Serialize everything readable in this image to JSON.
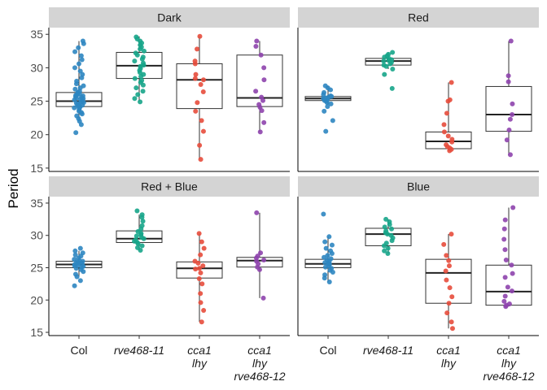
{
  "chart_data": {
    "type": "box+jitter",
    "ylabel": "Period",
    "xlabel": "",
    "ylim": [
      14.5,
      36
    ],
    "yticks": [
      15,
      20,
      25,
      30,
      35
    ],
    "categories": [
      {
        "lines": [
          "Col"
        ],
        "italic": false
      },
      {
        "lines": [
          "rve468-11"
        ],
        "italic": true
      },
      {
        "lines": [
          "cca1",
          "lhy"
        ],
        "italic": true
      },
      {
        "lines": [
          "cca1",
          "lhy",
          "rve468-12"
        ],
        "italic": true
      }
    ],
    "colors": [
      "#2E86C1",
      "#17A589",
      "#E74C3C",
      "#8E44AD"
    ],
    "panels": [
      {
        "title": "Dark",
        "boxes": [
          {
            "q1": 24.2,
            "median": 25.0,
            "q3": 26.3,
            "low": 22.0,
            "high": 34.0
          },
          {
            "q1": 28.4,
            "median": 30.3,
            "q3": 32.3,
            "low": 25.0,
            "high": 34.7
          },
          {
            "q1": 23.9,
            "median": 28.2,
            "q3": 30.6,
            "low": 16.3,
            "high": 34.7
          },
          {
            "q1": 24.2,
            "median": 25.5,
            "q3": 31.9,
            "low": 20.4,
            "high": 34.0
          }
        ],
        "points": [
          [
            20.3,
            21.5,
            22.0,
            22.4,
            22.8,
            23.1,
            23.3,
            23.5,
            23.7,
            23.9,
            24.0,
            24.1,
            24.2,
            24.3,
            24.4,
            24.5,
            24.6,
            24.7,
            24.8,
            24.9,
            25.0,
            25.1,
            25.2,
            25.3,
            25.4,
            25.5,
            25.6,
            25.7,
            25.8,
            25.9,
            26.0,
            26.1,
            26.2,
            26.3,
            26.5,
            26.8,
            27.0,
            27.3,
            27.6,
            28.0,
            28.5,
            29.0,
            29.5,
            30.0,
            30.6,
            31.2,
            31.8,
            32.4,
            33.0,
            33.6,
            34.0
          ],
          [
            24.9,
            25.4,
            26.0,
            26.5,
            27.0,
            27.4,
            27.8,
            28.1,
            28.4,
            28.7,
            29.0,
            29.3,
            29.6,
            29.9,
            30.2,
            30.4,
            30.7,
            31.0,
            31.3,
            31.6,
            31.9,
            32.2,
            32.5,
            32.8,
            33.1,
            33.4,
            33.7,
            34.0,
            34.3,
            34.6
          ],
          [
            16.3,
            18.4,
            20.5,
            22.1,
            23.5,
            24.8,
            26.4,
            27.5,
            28.2,
            28.4,
            29.0,
            30.6,
            31.0,
            32.8,
            34.7
          ],
          [
            20.4,
            21.8,
            23.6,
            24.1,
            24.5,
            25.1,
            25.6,
            26.5,
            28.2,
            30.0,
            31.9,
            33.2,
            34.0
          ]
        ]
      },
      {
        "title": "Red",
        "boxes": [
          {
            "q1": 25.1,
            "median": 25.4,
            "q3": 25.7,
            "low": 24.5,
            "high": 27.3
          },
          {
            "q1": 30.4,
            "median": 31.0,
            "q3": 31.4,
            "low": 29.8,
            "high": 32.3
          },
          {
            "q1": 17.9,
            "median": 19.0,
            "q3": 20.4,
            "low": 17.6,
            "high": 27.8
          },
          {
            "q1": 20.5,
            "median": 23.0,
            "q3": 27.2,
            "low": 17.0,
            "high": 34.0
          }
        ],
        "points": [
          [
            20.5,
            22.1,
            23.5,
            24.2,
            24.6,
            24.8,
            25.0,
            25.1,
            25.2,
            25.3,
            25.4,
            25.5,
            25.6,
            25.7,
            25.8,
            26.0,
            26.3,
            26.7,
            27.0,
            27.3
          ],
          [
            26.9,
            29.0,
            29.8,
            30.2,
            30.4,
            30.6,
            30.8,
            31.0,
            31.1,
            31.2,
            31.4,
            31.6,
            31.8,
            32.0,
            32.3
          ],
          [
            17.6,
            17.8,
            18.0,
            18.2,
            18.5,
            18.9,
            19.3,
            19.8,
            20.4,
            21.5,
            23.2,
            25.0,
            25.2,
            27.8
          ],
          [
            17.0,
            19.2,
            20.7,
            22.3,
            23.0,
            24.6,
            27.9,
            28.8,
            34.0
          ]
        ]
      },
      {
        "title": "Red + Blue",
        "boxes": [
          {
            "q1": 25.0,
            "median": 25.5,
            "q3": 26.0,
            "low": 23.6,
            "high": 27.6
          },
          {
            "q1": 28.9,
            "median": 29.5,
            "q3": 30.7,
            "low": 27.7,
            "high": 33.2
          },
          {
            "q1": 23.4,
            "median": 24.9,
            "q3": 25.9,
            "low": 16.6,
            "high": 30.3
          },
          {
            "q1": 25.1,
            "median": 26.1,
            "q3": 26.6,
            "low": 20.3,
            "high": 33.5
          }
        ],
        "points": [
          [
            22.2,
            23.0,
            23.6,
            24.0,
            24.4,
            24.7,
            24.9,
            25.1,
            25.2,
            25.3,
            25.4,
            25.5,
            25.6,
            25.7,
            25.8,
            25.9,
            26.0,
            26.1,
            26.3,
            26.5,
            26.8,
            27.0,
            27.3,
            27.6,
            28.0
          ],
          [
            27.7,
            28.1,
            28.4,
            28.7,
            28.9,
            29.1,
            29.3,
            29.5,
            29.7,
            29.9,
            30.1,
            30.3,
            30.6,
            31.0,
            31.5,
            32.2,
            32.8,
            33.2,
            33.8
          ],
          [
            16.6,
            18.4,
            19.6,
            21.0,
            22.5,
            23.3,
            24.2,
            24.8,
            24.9,
            25.3,
            25.7,
            26.0,
            27.0,
            28.0,
            29.0,
            30.3
          ],
          [
            20.3,
            24.7,
            25.1,
            25.6,
            26.0,
            26.2,
            26.5,
            26.8,
            27.3,
            33.5
          ]
        ]
      },
      {
        "title": "Blue",
        "boxes": [
          {
            "q1": 25.0,
            "median": 25.6,
            "q3": 26.3,
            "low": 22.8,
            "high": 29.8
          },
          {
            "q1": 28.4,
            "median": 30.2,
            "q3": 31.1,
            "low": 27.2,
            "high": 32.5
          },
          {
            "q1": 19.5,
            "median": 24.2,
            "q3": 26.3,
            "low": 15.6,
            "high": 30.2
          },
          {
            "q1": 19.2,
            "median": 21.3,
            "q3": 25.4,
            "low": 19.0,
            "high": 34.3
          }
        ],
        "points": [
          [
            22.8,
            23.4,
            23.9,
            24.3,
            24.6,
            24.9,
            25.1,
            25.3,
            25.5,
            25.6,
            25.7,
            25.8,
            26.0,
            26.2,
            26.4,
            26.6,
            26.9,
            27.2,
            27.6,
            28.0,
            28.5,
            29.0,
            29.8,
            33.3
          ],
          [
            27.2,
            27.6,
            28.0,
            28.4,
            28.8,
            29.2,
            29.6,
            30.0,
            30.2,
            30.4,
            30.7,
            31.0,
            31.3,
            31.7,
            32.1,
            32.5
          ],
          [
            15.6,
            16.6,
            18.0,
            19.5,
            20.5,
            21.9,
            23.1,
            24.5,
            25.3,
            26.1,
            26.9,
            28.6,
            30.2
          ],
          [
            19.0,
            19.2,
            19.4,
            19.8,
            20.6,
            21.4,
            22.0,
            23.5,
            24.1,
            25.4,
            26.2,
            27.8,
            29.4,
            31.0,
            32.4,
            34.3
          ]
        ]
      }
    ]
  }
}
